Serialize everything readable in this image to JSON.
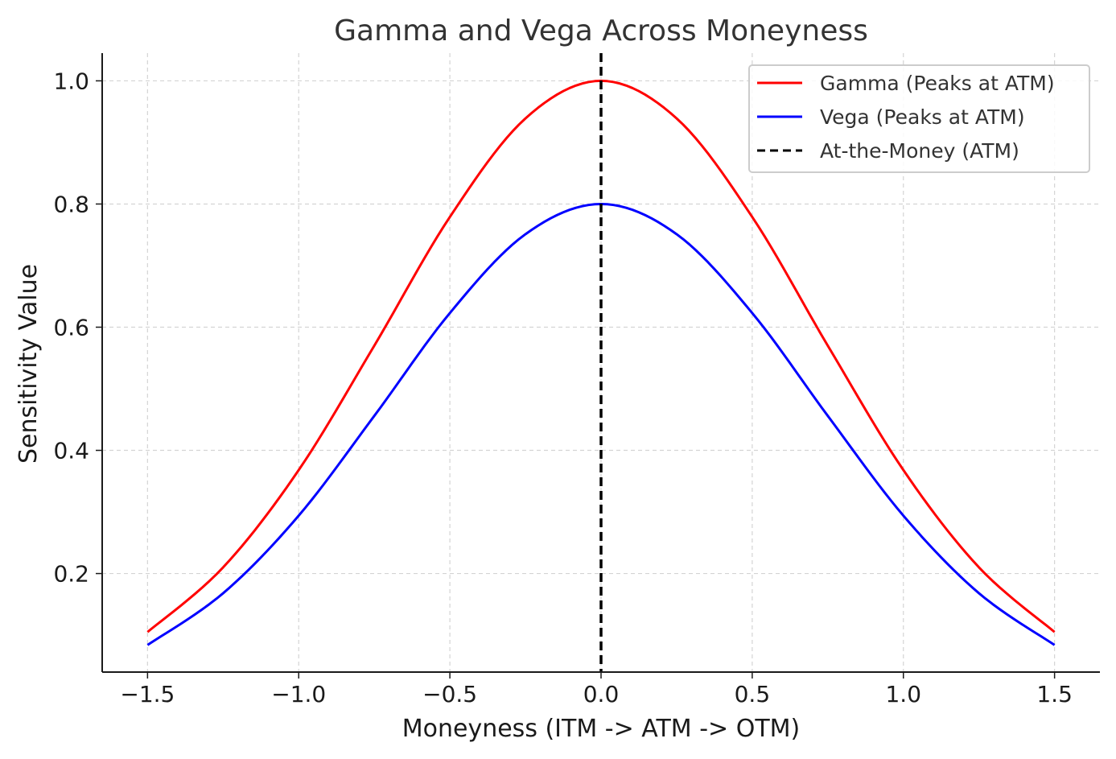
{
  "chart_data": {
    "type": "line",
    "title": "Gamma and Vega Across Moneyness",
    "xlabel": "Moneyness (ITM -> ATM -> OTM)",
    "ylabel": "Sensitivity Value",
    "xlim": [
      -1.65,
      1.65
    ],
    "ylim": [
      0.04,
      1.045
    ],
    "xticks": [
      -1.5,
      -1.0,
      -0.5,
      0.0,
      0.5,
      1.0,
      1.5
    ],
    "xtick_labels": [
      "−1.5",
      "−1.0",
      "−0.5",
      "0.0",
      "0.5",
      "1.0",
      "1.5"
    ],
    "yticks": [
      0.2,
      0.4,
      0.6,
      0.8,
      1.0
    ],
    "ytick_labels": [
      "0.2",
      "0.4",
      "0.6",
      "0.8",
      "1.0"
    ],
    "grid": true,
    "legend_position": "top-right",
    "x": [
      -1.5,
      -1.25,
      -1.0,
      -0.75,
      -0.5,
      -0.25,
      0.0,
      0.25,
      0.5,
      0.75,
      1.0,
      1.25,
      1.5
    ],
    "series": [
      {
        "name": "Gamma (Peaks at ATM)",
        "color": "#ff0000",
        "style": "solid",
        "values": [
          0.105,
          0.21,
          0.368,
          0.57,
          0.779,
          0.939,
          1.0,
          0.939,
          0.779,
          0.57,
          0.368,
          0.21,
          0.105
        ]
      },
      {
        "name": "Vega (Peaks at ATM)",
        "color": "#0000ff",
        "style": "solid",
        "values": [
          0.084,
          0.168,
          0.294,
          0.456,
          0.623,
          0.751,
          0.8,
          0.751,
          0.623,
          0.456,
          0.294,
          0.168,
          0.084
        ]
      }
    ],
    "vlines": [
      {
        "name": "At-the-Money (ATM)",
        "x": 0.0,
        "color": "#000000",
        "style": "dashed"
      }
    ]
  }
}
